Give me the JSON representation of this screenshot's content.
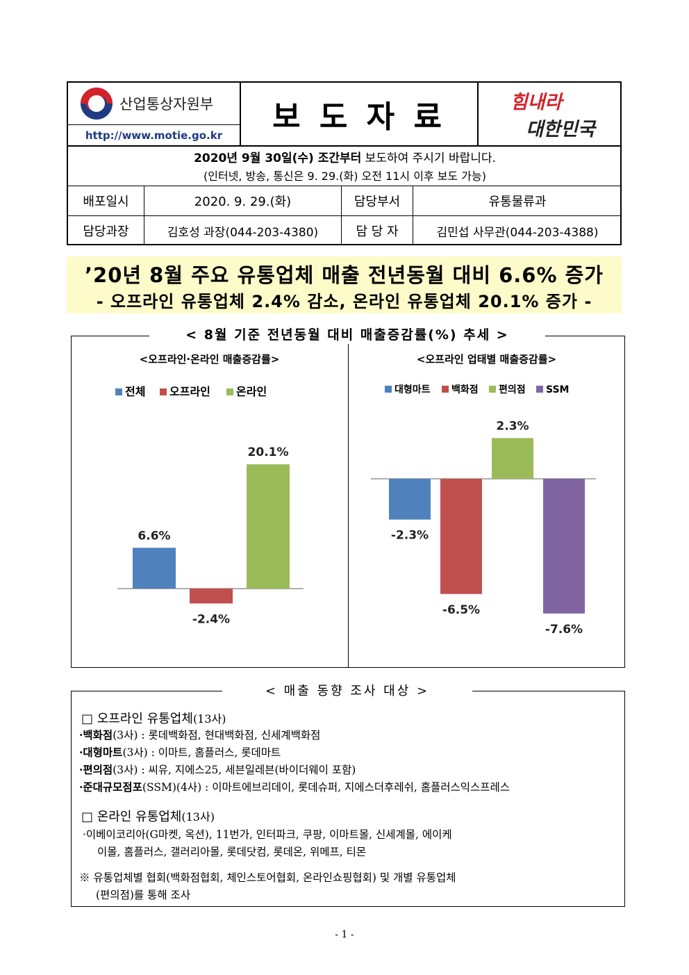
{
  "header": {
    "ministry": "산업통상자원부",
    "url": "http://www.motie.go.kr",
    "title": "보 도 자 료",
    "slogan_line1": "힘내라",
    "slogan_line2": "대한민국",
    "embargo_bold": "2020년 9월 30일(수) 조간부터",
    "embargo_rest": " 보도하여 주시기 바랍니다.",
    "embargo_note": "(인터넷, 방송, 통신은 9. 29.(화) 오전 11시 이후 보도 가능)",
    "release_label": "배포일시",
    "release_value": "2020. 9. 29.(화)",
    "dept_label": "담당부서",
    "dept_value": "유통물류과",
    "director_label": "담당과장",
    "director_value": "김호성 과장(044-203-4380)",
    "contact_label": "담 당 자",
    "contact_value": "김민섭 사무관(044-203-4388)"
  },
  "headline": {
    "line1": "’20년 8월 주요 유통업체 매출 전년동월 대비 6.6% 증가",
    "line2": "- 오프라인 유통업체 2.4% 감소, 온라인 유통업체 20.1% 증가 -"
  },
  "chart_section_title": "< 8월 기준 전년동월 대비 매출증감률(%) 추세 >",
  "chart_data": [
    {
      "type": "bar",
      "title": "<오프라인·온라인 매출증감률>",
      "categories": [
        "전체",
        "오프라인",
        "온라인"
      ],
      "values": [
        6.6,
        -2.4,
        20.1
      ],
      "labels": [
        "6.6%",
        "-2.4%",
        "20.1%"
      ],
      "colors": [
        "#4f81bd",
        "#c0504d",
        "#9bbb59"
      ],
      "legend": "top"
    },
    {
      "type": "bar",
      "title": "<오프라인 업태별 매출증감률>",
      "categories": [
        "대형마트",
        "백화점",
        "편의점",
        "SSM"
      ],
      "values": [
        -2.3,
        -6.5,
        2.3,
        -7.6
      ],
      "labels": [
        "-2.3%",
        "-6.5%",
        "2.3%",
        "-7.6%"
      ],
      "colors": [
        "#4f81bd",
        "#c0504d",
        "#9bbb59",
        "#8064a2"
      ],
      "legend": "top"
    }
  ],
  "survey": {
    "title": "< 매출 동향 조사 대상 >",
    "offline_head": "□ 오프라인 유통업체",
    "offline_count": "(13사)",
    "offline_items": [
      {
        "name": "·백화점",
        "rest": "(3사) : 롯데백화점, 현대백화점, 신세계백화점"
      },
      {
        "name": "·대형마트",
        "rest": "(3사) : 이마트, 홈플러스, 롯데마트"
      },
      {
        "name": "·편의점",
        "rest": "(3사) : 씨유, 지에스25, 세븐일레븐(바이더웨이 포함)"
      },
      {
        "name": "·준대규모점포",
        "rest": "(SSM)(4사) : 이마트에브리데이, 롯데슈퍼, 지에스더후레쉬, 홈플러스익스프레스"
      }
    ],
    "online_head": "□ 온라인 유통업체",
    "online_count": "(13사)",
    "online_line1": "·이베이코리아(G마켓, 옥션), 11번가, 인터파크, 쿠팡, 이마트몰, 신세계몰, 에이케",
    "online_line2": "이몰, 홈플러스, 갤러리아몰, 롯데닷컴, 롯데온, 위메프, 티몬",
    "note_line1": "※ 유통업체별 협회(백화점협회, 체인스토어협회, 온라인쇼핑협회) 및 개별 유통업체",
    "note_line2": "(편의점)를 통해 조사"
  },
  "page_number": "- 1 -"
}
